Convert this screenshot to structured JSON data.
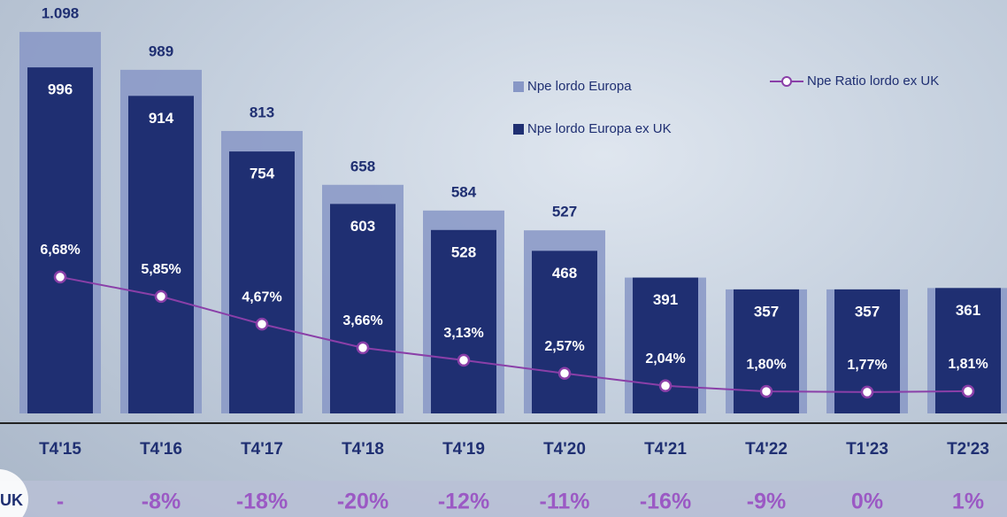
{
  "chart_data": {
    "type": "bar",
    "categories": [
      "T4'15",
      "T4'16",
      "T4'17",
      "T4'18",
      "T4'19",
      "T4'20",
      "T4'21",
      "T4'22",
      "T1'23",
      "T2'23"
    ],
    "series": [
      {
        "name": "Npe lordo Europa",
        "color": "#8797c6",
        "values": [
          1098,
          989,
          813,
          658,
          584,
          527,
          391,
          357,
          357,
          361
        ],
        "value_labels": [
          "1.098",
          "989",
          "813",
          "658",
          "584",
          "527",
          null,
          null,
          null,
          null
        ]
      },
      {
        "name": "Npe lordo Europa ex UK",
        "color": "#1f2f72",
        "values": [
          996,
          914,
          754,
          603,
          528,
          468,
          391,
          357,
          357,
          361
        ]
      },
      {
        "name": "Npe Ratio lordo ex UK",
        "type": "line",
        "axis": "y2",
        "color": "#8a3fa8",
        "values": [
          6.68,
          5.85,
          4.67,
          3.66,
          3.13,
          2.57,
          2.04,
          1.8,
          1.77,
          1.81
        ],
        "value_labels": [
          "6,68%",
          "5,85%",
          "4,67%",
          "3,66%",
          "3,13%",
          "2,57%",
          "2,04%",
          "1,80%",
          "1,77%",
          "1,81%"
        ]
      }
    ],
    "ylim": [
      0,
      1190
    ],
    "y2lim": [
      0.86,
      18.5
    ],
    "legend": "top-right",
    "bottom_row": {
      "label": "UK",
      "values": [
        "-",
        "-8%",
        "-18%",
        "-20%",
        "-12%",
        "-11%",
        "-16%",
        "-9%",
        "0%",
        "1%"
      ]
    }
  }
}
